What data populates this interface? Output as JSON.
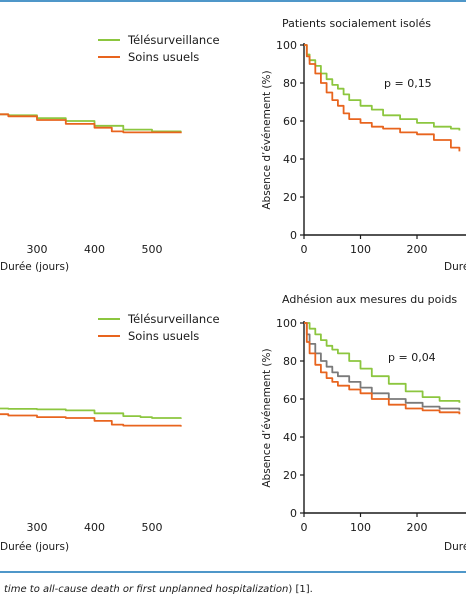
{
  "colors": {
    "frame": "#4f97c9",
    "telesurveillance": "#8cc63f",
    "soins_usuels": "#e8641e",
    "third_series": "#7a7a7a"
  },
  "caption": {
    "italic": "time to all-cause death or first unplanned hospitalization",
    "tail": ") [1]."
  },
  "chart_data": [
    {
      "type": "line",
      "title": "",
      "xlabel": "Durée (jours)",
      "ylabel": "",
      "xticks": [
        "300",
        "400",
        "500"
      ],
      "xlim": [
        0,
        550
      ],
      "ylim": [
        0,
        100
      ],
      "legend": [
        "Télésurveillance",
        "Soins usuels"
      ],
      "legend_position": "top-right",
      "series": [
        {
          "name": "Télésurveillance",
          "color": "#8cc63f",
          "x": [
            200,
            250,
            300,
            350,
            400,
            450,
            500,
            550
          ],
          "y": [
            63.5,
            63,
            61.5,
            60,
            57.5,
            55.5,
            54.5,
            54
          ]
        },
        {
          "name": "Soins usuels",
          "color": "#e8641e",
          "x": [
            200,
            250,
            300,
            350,
            400,
            430,
            450,
            500,
            550
          ],
          "y": [
            63.5,
            62.5,
            60.5,
            58.5,
            56.5,
            54.5,
            54,
            54,
            53.5
          ]
        }
      ]
    },
    {
      "type": "line",
      "title": "Patients socialement isolés",
      "xlabel": "Durée",
      "ylabel": "Absence d’événement (%)",
      "annotation": "p = 0,15",
      "xticks": [
        "0",
        "100",
        "200"
      ],
      "yticks": [
        "0",
        "20",
        "40",
        "60",
        "80",
        "100"
      ],
      "xlim": [
        0,
        275
      ],
      "ylim": [
        0,
        100
      ],
      "series": [
        {
          "name": "Télésurveillance",
          "color": "#8cc63f",
          "x": [
            0,
            5,
            10,
            20,
            30,
            40,
            50,
            60,
            70,
            80,
            100,
            120,
            140,
            170,
            200,
            230,
            260,
            275
          ],
          "y": [
            100,
            95,
            92,
            89,
            85,
            82,
            79,
            77,
            74,
            71,
            68,
            66,
            63,
            61,
            59,
            57,
            56,
            55
          ]
        },
        {
          "name": "Soins usuels",
          "color": "#e8641e",
          "x": [
            0,
            5,
            10,
            20,
            30,
            40,
            50,
            60,
            70,
            80,
            100,
            120,
            140,
            170,
            200,
            230,
            260,
            275
          ],
          "y": [
            100,
            94,
            90,
            85,
            80,
            75,
            71,
            68,
            64,
            61,
            59,
            57,
            56,
            54,
            53,
            50,
            46,
            44
          ]
        }
      ]
    },
    {
      "type": "line",
      "title": "",
      "xlabel": "Durée (jours)",
      "ylabel": "",
      "xticks": [
        "300",
        "400",
        "500"
      ],
      "xlim": [
        0,
        550
      ],
      "ylim": [
        0,
        100
      ],
      "legend": [
        "Télésurveillance",
        "Soins usuels"
      ],
      "legend_position": "top-right",
      "series": [
        {
          "name": "Télésurveillance",
          "color": "#8cc63f",
          "x": [
            200,
            250,
            300,
            350,
            400,
            450,
            480,
            500,
            550
          ],
          "y": [
            55,
            54.8,
            54.5,
            54,
            52.5,
            51,
            50.5,
            50,
            49.5
          ]
        },
        {
          "name": "Soins usuels",
          "color": "#e8641e",
          "x": [
            200,
            250,
            300,
            350,
            400,
            430,
            450,
            500,
            550
          ],
          "y": [
            52,
            51.3,
            50.5,
            50,
            48.5,
            46.5,
            46,
            46,
            45.5
          ]
        }
      ]
    },
    {
      "type": "line",
      "title": "Adhésion aux mesures du poids",
      "xlabel": "Durée",
      "ylabel": "Absence d’événement (%)",
      "annotation": "p = 0,04",
      "xticks": [
        "0",
        "100",
        "200"
      ],
      "yticks": [
        "0",
        "20",
        "40",
        "60",
        "80",
        "100"
      ],
      "xlim": [
        0,
        275
      ],
      "ylim": [
        0,
        100
      ],
      "series": [
        {
          "color": "#8cc63f",
          "x": [
            0,
            10,
            20,
            30,
            40,
            50,
            60,
            80,
            100,
            120,
            150,
            180,
            210,
            240,
            275
          ],
          "y": [
            100,
            97,
            94,
            91,
            88,
            86,
            84,
            80,
            76,
            72,
            68,
            64,
            61,
            59,
            58
          ]
        },
        {
          "color": "#7a7a7a",
          "x": [
            0,
            5,
            10,
            20,
            30,
            40,
            50,
            60,
            80,
            100,
            120,
            150,
            180,
            210,
            240,
            275
          ],
          "y": [
            100,
            94,
            89,
            84,
            80,
            77,
            74,
            72,
            69,
            66,
            63,
            60,
            58,
            56,
            55,
            54
          ]
        },
        {
          "color": "#e8641e",
          "x": [
            0,
            5,
            10,
            20,
            30,
            40,
            50,
            60,
            80,
            100,
            120,
            150,
            180,
            210,
            240,
            275
          ],
          "y": [
            100,
            90,
            84,
            78,
            74,
            71,
            69,
            67,
            65,
            63,
            60,
            57,
            55,
            54,
            53,
            52
          ]
        }
      ]
    }
  ]
}
